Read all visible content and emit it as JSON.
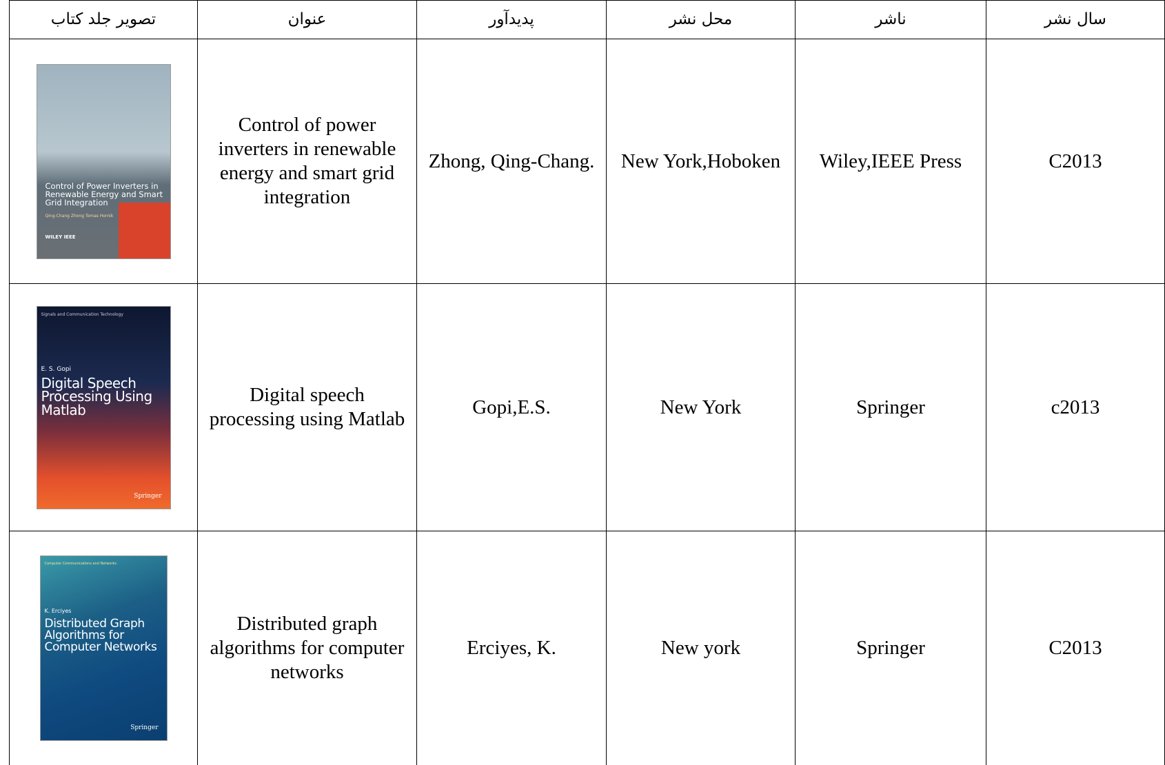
{
  "table": {
    "headers": [
      "سال نشر",
      "ناشر",
      "محل نشر",
      "پدیدآور",
      "عنوان",
      "تصویر جلد کتاب"
    ],
    "rows": [
      [
        "C2013",
        "Wiley,IEEE Press",
        "New York,Hoboken",
        "Zhong, Qing-Chang.",
        "Control of power inverters in renewable energy and smart grid integration"
      ],
      [
        "c2013",
        "Springer",
        "New York",
        "Gopi,E.S.",
        "Digital speech processing using Matlab"
      ],
      [
        "C2013",
        "Springer",
        "New york",
        "Erciyes, K.",
        "Distributed graph algorithms for computer networks"
      ]
    ],
    "covers": [
      {
        "title": "Control of Power Inverters in Renewable Energy and Smart Grid Integration",
        "authors": "Qing-Chang Zhong  Tomas Hornik",
        "publishers": "WILEY IEEE"
      },
      {
        "series": "Signals and Communication Technology",
        "author": "E. S. Gopi",
        "title": "Digital Speech Processing Using Matlab",
        "publisher": "Springer"
      },
      {
        "series": "Computer Communications and Networks",
        "author": "K. Erciyes",
        "title": "Distributed Graph Algorithms for Computer Networks",
        "publisher": "Springer"
      }
    ]
  }
}
